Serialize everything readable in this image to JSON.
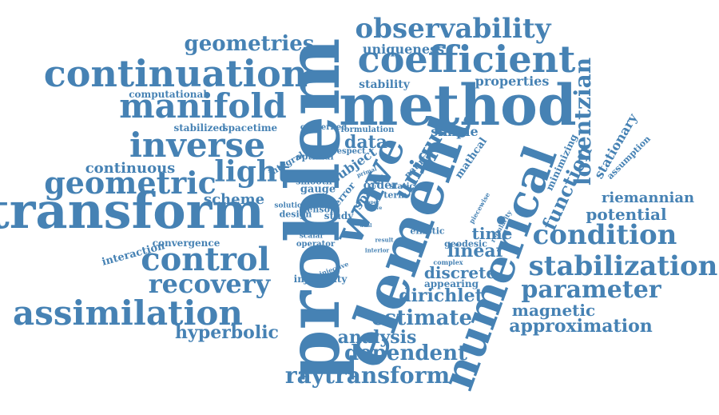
{
  "color": "#4682b4",
  "words": [
    {
      "id": "problem",
      "text": "problem"
    },
    {
      "id": "method",
      "text": "method"
    },
    {
      "id": "element",
      "text": "element"
    },
    {
      "id": "transform",
      "text": "transform"
    },
    {
      "id": "numerical",
      "text": "numerical"
    },
    {
      "id": "coefficient",
      "text": "coefficient"
    },
    {
      "id": "continuation",
      "text": "continuation"
    },
    {
      "id": "wave",
      "text": "wave"
    },
    {
      "id": "manifold",
      "text": "manifold"
    },
    {
      "id": "inverse",
      "text": "inverse"
    },
    {
      "id": "observability",
      "text": "observability"
    },
    {
      "id": "assimilation",
      "text": "assimilation"
    },
    {
      "id": "control",
      "text": "control"
    },
    {
      "id": "stabilization",
      "text": "stabilization"
    },
    {
      "id": "geometric",
      "text": "geometric"
    },
    {
      "id": "condition",
      "text": "condition"
    },
    {
      "id": "light",
      "text": "light"
    },
    {
      "id": "recovery",
      "text": "recovery"
    },
    {
      "id": "parameter",
      "text": "parameter"
    },
    {
      "id": "raytransform",
      "text": "raytransform"
    },
    {
      "id": "geometries",
      "text": "geometries"
    },
    {
      "id": "lorentzian",
      "text": "lorentzian"
    },
    {
      "id": "estimate",
      "text": "estimate"
    },
    {
      "id": "function",
      "text": "function"
    },
    {
      "id": "dependent",
      "text": "dependent"
    },
    {
      "id": "unique",
      "text": "unique"
    },
    {
      "id": "hyperbolic",
      "text": "hyperbolic"
    },
    {
      "id": "dirichlet",
      "text": "dirichlet"
    },
    {
      "id": "approximation",
      "text": "approximation"
    },
    {
      "id": "analysis",
      "text": "analysis"
    },
    {
      "id": "potential",
      "text": "potential"
    },
    {
      "id": "riemannian",
      "text": "riemannian"
    },
    {
      "id": "discrete",
      "text": "discrete"
    },
    {
      "id": "magnetic",
      "text": "magnetic"
    },
    {
      "id": "linear",
      "text": "linear"
    },
    {
      "id": "time",
      "text": "time"
    },
    {
      "id": "scheme",
      "text": "scheme"
    },
    {
      "id": "continuous",
      "text": "continuous"
    },
    {
      "id": "data",
      "text": "data"
    },
    {
      "id": "stationary",
      "text": "stationary"
    },
    {
      "id": "uniqueness",
      "text": "uniqueness"
    },
    {
      "id": "properties",
      "text": "properties"
    },
    {
      "id": "stability",
      "text": "stability"
    },
    {
      "id": "simple",
      "text": "simple"
    },
    {
      "id": "subject",
      "text": "subject"
    },
    {
      "id": "spacetime",
      "text": "spacetime"
    },
    {
      "id": "computational",
      "text": "computational"
    },
    {
      "id": "stabilized",
      "text": "stabilized"
    },
    {
      "id": "concerned",
      "text": "concerned"
    },
    {
      "id": "formulation",
      "text": "formulation"
    },
    {
      "id": "minimizing",
      "text": "minimizing"
    },
    {
      "id": "mathcal",
      "text": "mathcal"
    },
    {
      "id": "natural",
      "text": "natural"
    },
    {
      "id": "assumption",
      "text": "assumption"
    },
    {
      "id": "integral",
      "text": "integral"
    },
    {
      "id": "optimal",
      "text": "optimal"
    },
    {
      "id": "respect",
      "text": "respect"
    },
    {
      "id": "smooth",
      "text": "smooth"
    },
    {
      "id": "gauge",
      "text": "gauge"
    },
    {
      "id": "space",
      "text": "space"
    },
    {
      "id": "error",
      "text": "error"
    },
    {
      "id": "order",
      "text": "order"
    },
    {
      "id": "static",
      "text": "static"
    },
    {
      "id": "term",
      "text": "term"
    },
    {
      "id": "primal",
      "text": "primal"
    },
    {
      "id": "hold",
      "text": "hold"
    },
    {
      "id": "solution",
      "text": "solution"
    },
    {
      "id": "design",
      "text": "design"
    },
    {
      "id": "tensor",
      "text": "tensor"
    },
    {
      "id": "study",
      "text": "study"
    },
    {
      "id": "interaction",
      "text": "interaction"
    },
    {
      "id": "convergence",
      "text": "convergence"
    },
    {
      "id": "scalar",
      "text": "scalar"
    },
    {
      "id": "operator",
      "text": "operator"
    },
    {
      "id": "injective",
      "text": "injective"
    },
    {
      "id": "injectivity",
      "text": "injectivity"
    },
    {
      "id": "elliptic",
      "text": "elliptic"
    },
    {
      "id": "geodesic",
      "text": "geodesic"
    },
    {
      "id": "complex",
      "text": "complex"
    },
    {
      "id": "appearing",
      "text": "appearing"
    },
    {
      "id": "piecewise",
      "text": "piecewise"
    },
    {
      "id": "regularity",
      "text": "regularity"
    },
    {
      "id": "interior",
      "text": "interior"
    },
    {
      "id": "result",
      "text": "result"
    },
    {
      "id": "paper",
      "text": "paper"
    },
    {
      "id": "prove",
      "text": "prove"
    },
    {
      "id": "dual",
      "text": "dual"
    }
  ]
}
